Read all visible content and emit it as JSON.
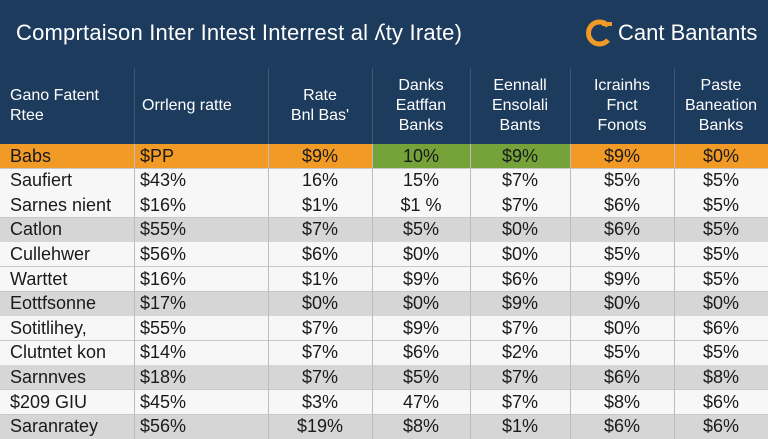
{
  "title": "Comprtaison Inter  Intest  Interrest al ʎty Irate)",
  "brand": {
    "name": "Cant Bantants",
    "logo_icon": "bank-logo-icon",
    "logo_colors": [
      "#f29a26",
      "#ffffff"
    ]
  },
  "colors": {
    "header_bg": "#1d3b5c",
    "highlight_row": "#f29a26",
    "green_cell": "#76a23a",
    "alt_row": "#d6d6d6",
    "plain_row": "#f7f7f7"
  },
  "chart_data": {
    "type": "table",
    "title": "Comprtaison Inter  Intest  Interrest al ʎty Irate)",
    "columns": [
      "Gano Fatent\nRtee",
      "Orrleng ratte",
      "Rate\nBnl Bas'",
      "Danks\nEatffan\nBanks",
      "Eennall\nEnsolali\nBants",
      "Icrainhs\nFnct\nFonots",
      "Paste\nBaneation\nBanks"
    ],
    "rows": [
      [
        "Babs",
        "$PP",
        "$9%",
        "10%",
        "$9%",
        "$9%",
        "$0%"
      ],
      [
        "Saufiert",
        "$43%",
        "16%",
        "15%",
        "$7%",
        "$5%",
        "$5%"
      ],
      [
        "Sarnes nient",
        "$16%",
        "$1%",
        "$1 %",
        "$7%",
        "$6%",
        "$5%"
      ],
      [
        "Catlon",
        "$55%",
        "$7%",
        "$5%",
        "$0%",
        "$6%",
        "$5%"
      ],
      [
        "Cullehwer",
        "$56%",
        "$6%",
        "$0%",
        "$0%",
        "$5%",
        "$5%"
      ],
      [
        "Warttet",
        "$16%",
        "$1%",
        "$9%",
        "$6%",
        "$9%",
        "$5%"
      ],
      [
        "Eottfsonne",
        "$17%",
        "$0%",
        "$0%",
        "$9%",
        "$0%",
        "$0%"
      ],
      [
        "Sotitlihey,",
        "$55%",
        "$7%",
        "$9%",
        "$7%",
        "$0%",
        "$6%"
      ],
      [
        "Clutntet kon",
        "$14%",
        "$7%",
        "$6%",
        "$2%",
        "$5%",
        "$5%"
      ],
      [
        "Sarnnves",
        "$18%",
        "$7%",
        "$5%",
        "$7%",
        "$6%",
        "$8%"
      ],
      [
        "$209 GIU",
        "$45%",
        "$3%",
        "47%",
        "$7%",
        "$8%",
        "$6%"
      ],
      [
        "Saranratey",
        "$56%",
        "$19%",
        "$8%",
        "$1%",
        "$6%",
        "$6%"
      ]
    ]
  }
}
